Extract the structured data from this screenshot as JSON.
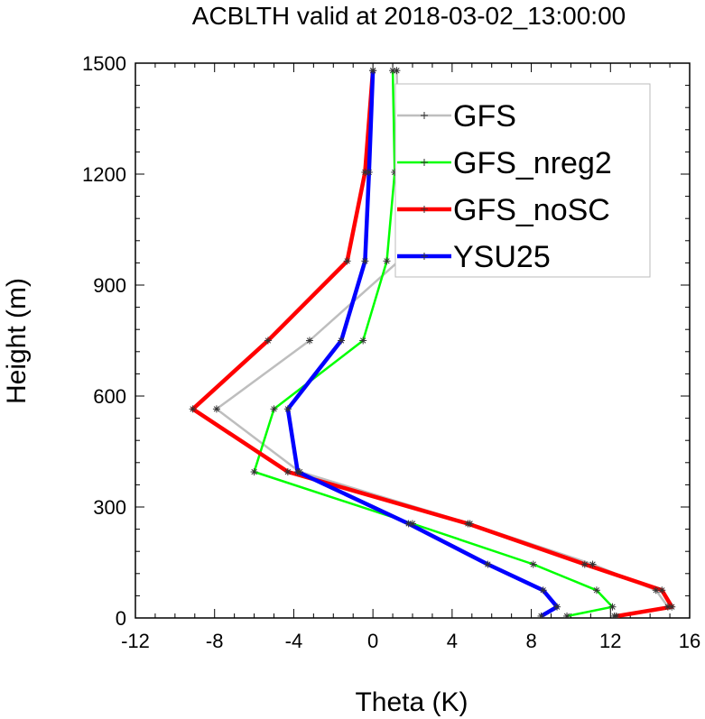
{
  "chart_data": {
    "type": "line",
    "title": "ACBLTH valid at 2018-03-02_13:00:00",
    "xlabel": "Theta (K)",
    "ylabel": "Height (m)",
    "xlim": [
      -12,
      16
    ],
    "ylim": [
      0,
      1500
    ],
    "xticks": [
      "-12",
      "-8",
      "-4",
      "0",
      "4",
      "8",
      "12",
      "16"
    ],
    "yticks": [
      "0",
      "300",
      "600",
      "900",
      "1200",
      "1500"
    ],
    "legend_position": "top-right",
    "grid": false,
    "series": [
      {
        "name": "GFS",
        "color": "#bebebe",
        "x": [
          12.2,
          14.9,
          14.3,
          11.1,
          4.9,
          -3.7,
          -7.9,
          -3.2,
          1.3,
          1.3,
          1.2
        ],
        "y": [
          5,
          30,
          75,
          145,
          255,
          395,
          565,
          750,
          965,
          1205,
          1480
        ]
      },
      {
        "name": "GFS_nreg2",
        "color": "#00ff00",
        "x": [
          9.8,
          12.1,
          11.3,
          8.1,
          2.0,
          -6.0,
          -5.0,
          -0.5,
          0.7,
          1.1,
          1.0
        ],
        "y": [
          5,
          30,
          75,
          145,
          255,
          395,
          565,
          750,
          965,
          1205,
          1480
        ]
      },
      {
        "name": "GFS_noSC",
        "color": "#ff0000",
        "x": [
          12.3,
          15.1,
          14.6,
          10.7,
          4.8,
          -4.3,
          -9.1,
          -5.3,
          -1.3,
          -0.4,
          0.0
        ],
        "y": [
          5,
          30,
          75,
          145,
          255,
          395,
          565,
          750,
          965,
          1205,
          1480
        ]
      },
      {
        "name": "YSU25",
        "color": "#0000ff",
        "x": [
          8.5,
          9.3,
          8.6,
          5.8,
          1.8,
          -3.8,
          -4.3,
          -1.6,
          -0.4,
          -0.2,
          0.0
        ],
        "y": [
          5,
          30,
          75,
          145,
          255,
          395,
          565,
          750,
          965,
          1205,
          1480
        ]
      }
    ]
  }
}
